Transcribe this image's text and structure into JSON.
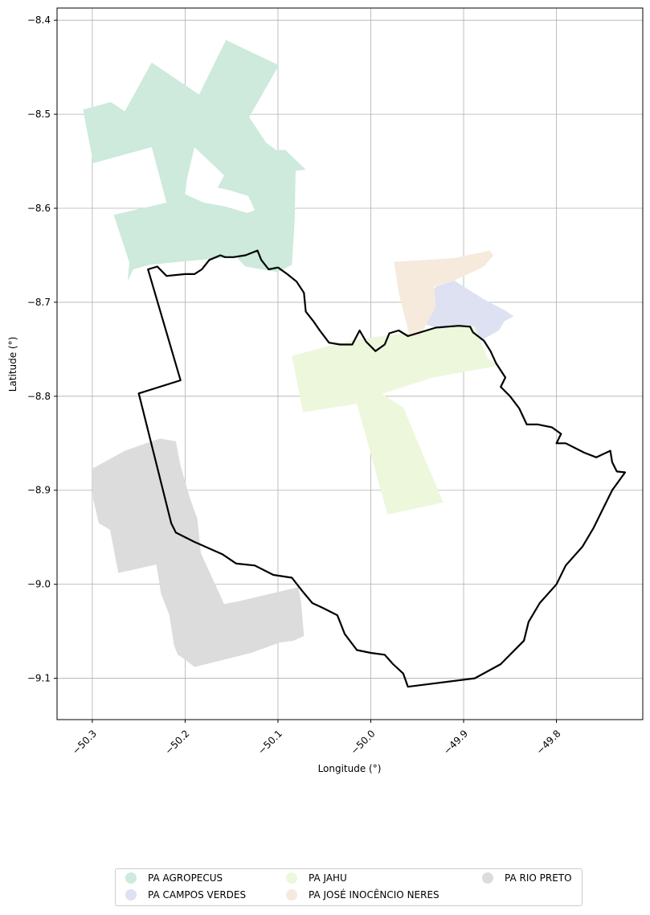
{
  "map": {
    "xlabel": "Longitude (°)",
    "ylabel": "Latitude (°)",
    "x_ticks": [
      "−50.3",
      "−50.2",
      "−50.1",
      "−50.0",
      "−49.9",
      "−49.8"
    ],
    "y_ticks": [
      "−8.4",
      "−8.5",
      "−8.6",
      "−8.7",
      "−8.8",
      "−8.9",
      "−9.0",
      "−9.1"
    ],
    "xlim": [
      -50.338,
      -49.707
    ],
    "ylim": [
      -9.144,
      -8.387
    ],
    "grid": true,
    "boundary_color": "#000000"
  },
  "legend": {
    "placement": "bottom-center",
    "items": [
      {
        "label": "PA AGROPECUS",
        "color": "#cdeadc"
      },
      {
        "label": "PA CAMPOS VERDES",
        "color": "#dde1f1"
      },
      {
        "label": "PA JAHU",
        "color": "#edf7dc"
      },
      {
        "label": "PA JOSÉ INOCÊNCIO NERES",
        "color": "#f5eadc"
      },
      {
        "label": "PA RIO PRETO",
        "color": "#dcdcdc"
      }
    ]
  },
  "chart_data": {
    "type": "map",
    "xlabel": "Longitude (°)",
    "ylabel": "Latitude (°)",
    "xlim": [
      -50.338,
      -49.707
    ],
    "ylim": [
      -9.144,
      -8.387
    ],
    "grid": true,
    "regions": [
      {
        "name": "PA AGROPECUS",
        "color": "#cdeadc",
        "polygons": [
          [
            [
              -50.31,
              -8.495
            ],
            [
              -50.28,
              -8.487
            ],
            [
              -50.265,
              -8.497
            ],
            [
              -50.236,
              -8.445
            ],
            [
              -50.185,
              -8.479
            ],
            [
              -50.156,
              -8.421
            ],
            [
              -50.099,
              -8.448
            ],
            [
              -50.131,
              -8.503
            ],
            [
              -50.113,
              -8.53
            ],
            [
              -50.102,
              -8.538
            ],
            [
              -50.092,
              -8.538
            ],
            [
              -50.07,
              -8.559
            ],
            [
              -50.081,
              -8.56
            ],
            [
              -50.082,
              -8.612
            ],
            [
              -50.085,
              -8.66
            ],
            [
              -50.1,
              -8.668
            ],
            [
              -50.135,
              -8.662
            ],
            [
              -50.145,
              -8.652
            ],
            [
              -50.185,
              -8.655
            ],
            [
              -50.238,
              -8.66
            ],
            [
              -50.256,
              -8.665
            ],
            [
              -50.262,
              -8.678
            ],
            [
              -50.26,
              -8.658
            ],
            [
              -50.277,
              -8.607
            ],
            [
              -50.22,
              -8.594
            ],
            [
              -50.236,
              -8.535
            ],
            [
              -50.299,
              -8.552
            ],
            [
              -50.31,
              -8.495
            ]
          ],
          [
            [
              -50.19,
              -8.535
            ],
            [
              -50.158,
              -8.565
            ],
            [
              -50.165,
              -8.578
            ],
            [
              -50.152,
              -8.581
            ],
            [
              -50.132,
              -8.587
            ],
            [
              -50.125,
              -8.602
            ],
            [
              -50.133,
              -8.605
            ],
            [
              -50.157,
              -8.598
            ],
            [
              -50.18,
              -8.594
            ],
            [
              -50.2,
              -8.585
            ],
            [
              -50.198,
              -8.569
            ],
            [
              -50.19,
              -8.535
            ]
          ]
        ]
      },
      {
        "name": "PA CAMPOS VERDES",
        "color": "#dde1f1",
        "polygons": [
          [
            [
              -49.93,
              -8.683
            ],
            [
              -49.91,
              -8.677
            ],
            [
              -49.878,
              -8.697
            ],
            [
              -49.855,
              -8.709
            ],
            [
              -49.846,
              -8.715
            ],
            [
              -49.856,
              -8.72
            ],
            [
              -49.862,
              -8.73
            ],
            [
              -49.88,
              -8.74
            ],
            [
              -49.905,
              -8.743
            ],
            [
              -49.92,
              -8.73
            ],
            [
              -49.943,
              -8.723
            ],
            [
              -49.945,
              -8.708
            ],
            [
              -49.935,
              -8.693
            ],
            [
              -49.93,
              -8.683
            ]
          ]
        ]
      },
      {
        "name": "PA JAHU",
        "color": "#edf7dc",
        "polygons": [
          [
            [
              -50.085,
              -8.757
            ],
            [
              -50.02,
              -8.74
            ],
            [
              -49.907,
              -8.726
            ],
            [
              -49.888,
              -8.725
            ],
            [
              -49.874,
              -8.76
            ],
            [
              -49.86,
              -8.767
            ],
            [
              -49.933,
              -8.78
            ],
            [
              -49.99,
              -8.798
            ],
            [
              -49.99,
              -8.796
            ],
            [
              -49.965,
              -8.812
            ],
            [
              -49.922,
              -8.913
            ],
            [
              -49.982,
              -8.926
            ],
            [
              -50.015,
              -8.808
            ],
            [
              -50.073,
              -8.817
            ],
            [
              -50.085,
              -8.757
            ]
          ]
        ]
      },
      {
        "name": "PA JOSÉ INOCÊNCIO NERES",
        "color": "#f5eadc",
        "polygons": [
          [
            [
              -49.975,
              -8.657
            ],
            [
              -49.97,
              -8.69
            ],
            [
              -49.962,
              -8.721
            ],
            [
              -49.958,
              -8.737
            ],
            [
              -49.946,
              -8.735
            ],
            [
              -49.94,
              -8.723
            ],
            [
              -49.93,
              -8.705
            ],
            [
              -49.932,
              -8.683
            ],
            [
              -49.91,
              -8.677
            ],
            [
              -49.878,
              -8.662
            ],
            [
              -49.868,
              -8.65
            ],
            [
              -49.872,
              -8.645
            ],
            [
              -49.91,
              -8.653
            ],
            [
              -49.975,
              -8.657
            ]
          ]
        ]
      },
      {
        "name": "PA RIO PRETO",
        "color": "#dcdcdc",
        "polygons": [
          [
            [
              -50.3,
              -8.877
            ],
            [
              -50.299,
              -8.91
            ],
            [
              -50.293,
              -8.935
            ],
            [
              -50.281,
              -8.942
            ],
            [
              -50.272,
              -8.988
            ],
            [
              -50.231,
              -8.979
            ],
            [
              -50.226,
              -9.01
            ],
            [
              -50.217,
              -9.033
            ],
            [
              -50.212,
              -9.065
            ],
            [
              -50.208,
              -9.075
            ],
            [
              -50.2,
              -9.08
            ],
            [
              -50.19,
              -9.088
            ],
            [
              -50.165,
              -9.082
            ],
            [
              -50.129,
              -9.073
            ],
            [
              -50.098,
              -9.062
            ],
            [
              -50.083,
              -9.06
            ],
            [
              -50.072,
              -9.055
            ],
            [
              -50.075,
              -9.02
            ],
            [
              -50.078,
              -9.003
            ],
            [
              -50.142,
              -9.018
            ],
            [
              -50.158,
              -9.021
            ],
            [
              -50.183,
              -8.967
            ],
            [
              -50.187,
              -8.93
            ],
            [
              -50.195,
              -8.908
            ],
            [
              -50.205,
              -8.874
            ],
            [
              -50.21,
              -8.848
            ],
            [
              -50.227,
              -8.845
            ],
            [
              -50.265,
              -8.858
            ],
            [
              -50.3,
              -8.877
            ]
          ]
        ]
      }
    ],
    "boundary": [
      [
        -50.24,
        -8.665
      ],
      [
        -50.23,
        -8.662
      ],
      [
        -50.22,
        -8.672
      ],
      [
        -50.2,
        -8.67
      ],
      [
        -50.19,
        -8.67
      ],
      [
        -50.182,
        -8.665
      ],
      [
        -50.174,
        -8.655
      ],
      [
        -50.162,
        -8.65
      ],
      [
        -50.157,
        -8.652
      ],
      [
        -50.148,
        -8.652
      ],
      [
        -50.135,
        -8.65
      ],
      [
        -50.122,
        -8.645
      ],
      [
        -50.118,
        -8.655
      ],
      [
        -50.11,
        -8.665
      ],
      [
        -50.1,
        -8.663
      ],
      [
        -50.09,
        -8.67
      ],
      [
        -50.08,
        -8.678
      ],
      [
        -50.072,
        -8.69
      ],
      [
        -50.07,
        -8.71
      ],
      [
        -50.062,
        -8.72
      ],
      [
        -50.055,
        -8.73
      ],
      [
        -50.045,
        -8.743
      ],
      [
        -50.033,
        -8.745
      ],
      [
        -50.02,
        -8.745
      ],
      [
        -50.012,
        -8.73
      ],
      [
        -50.005,
        -8.742
      ],
      [
        -49.995,
        -8.752
      ],
      [
        -49.985,
        -8.745
      ],
      [
        -49.98,
        -8.733
      ],
      [
        -49.97,
        -8.73
      ],
      [
        -49.96,
        -8.736
      ],
      [
        -49.95,
        -8.733
      ],
      [
        -49.94,
        -8.73
      ],
      [
        -49.93,
        -8.727
      ],
      [
        -49.918,
        -8.726
      ],
      [
        -49.905,
        -8.725
      ],
      [
        -49.893,
        -8.726
      ],
      [
        -49.89,
        -8.732
      ],
      [
        -49.878,
        -8.741
      ],
      [
        -49.871,
        -8.752
      ],
      [
        -49.865,
        -8.765
      ],
      [
        -49.855,
        -8.78
      ],
      [
        -49.86,
        -8.79
      ],
      [
        -49.85,
        -8.8
      ],
      [
        -49.84,
        -8.813
      ],
      [
        -49.832,
        -8.83
      ],
      [
        -49.82,
        -8.83
      ],
      [
        -49.805,
        -8.833
      ],
      [
        -49.795,
        -8.84
      ],
      [
        -49.8,
        -8.85
      ],
      [
        -49.79,
        -8.85
      ],
      [
        -49.77,
        -8.86
      ],
      [
        -49.757,
        -8.865
      ],
      [
        -49.742,
        -8.858
      ],
      [
        -49.74,
        -8.87
      ],
      [
        -49.735,
        -8.88
      ],
      [
        -49.726,
        -8.881
      ],
      [
        -49.74,
        -8.9
      ],
      [
        -49.75,
        -8.92
      ],
      [
        -49.76,
        -8.94
      ],
      [
        -49.772,
        -8.96
      ],
      [
        -49.79,
        -8.98
      ],
      [
        -49.8,
        -9.0
      ],
      [
        -49.818,
        -9.02
      ],
      [
        -49.83,
        -9.04
      ],
      [
        -49.835,
        -9.06
      ],
      [
        -49.86,
        -9.085
      ],
      [
        -49.888,
        -9.1
      ],
      [
        -49.96,
        -9.109
      ],
      [
        -49.965,
        -9.095
      ],
      [
        -49.976,
        -9.085
      ],
      [
        -49.985,
        -9.075
      ],
      [
        -50.0,
        -9.073
      ],
      [
        -50.015,
        -9.07
      ],
      [
        -50.028,
        -9.053
      ],
      [
        -50.036,
        -9.033
      ],
      [
        -50.052,
        -9.025
      ],
      [
        -50.063,
        -9.02
      ],
      [
        -50.074,
        -9.007
      ],
      [
        -50.085,
        -8.993
      ],
      [
        -50.105,
        -8.99
      ],
      [
        -50.125,
        -8.98
      ],
      [
        -50.145,
        -8.978
      ],
      [
        -50.16,
        -8.968
      ],
      [
        -50.19,
        -8.955
      ],
      [
        -50.21,
        -8.945
      ],
      [
        -50.215,
        -8.935
      ],
      [
        -50.25,
        -8.797
      ],
      [
        -50.205,
        -8.783
      ],
      [
        -50.24,
        -8.665
      ]
    ]
  }
}
